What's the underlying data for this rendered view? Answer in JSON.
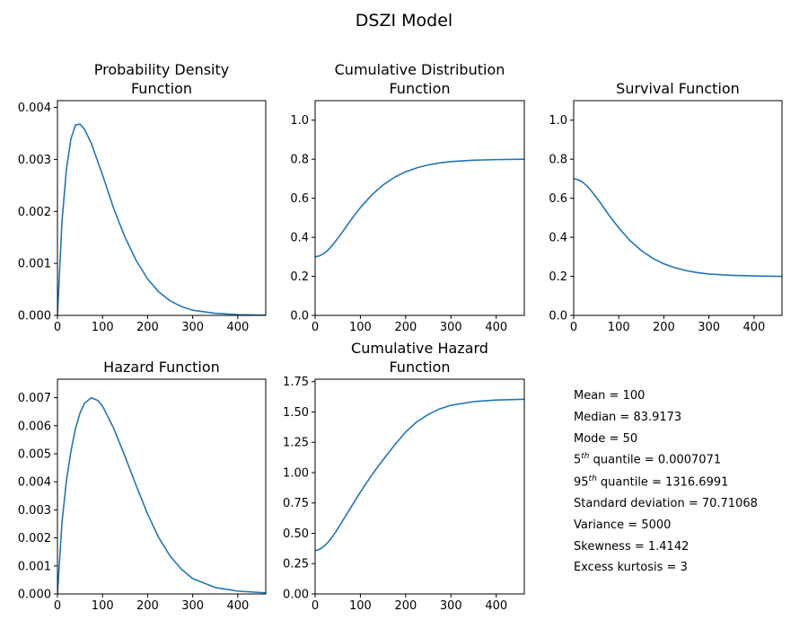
{
  "figure": {
    "title": "DSZI Model"
  },
  "colors": {
    "line": "#1f77b4",
    "axis": "#000000",
    "background": "#ffffff"
  },
  "chart_data": [
    {
      "id": "pdf",
      "type": "line",
      "title": "Probability Density\nFunction",
      "xlim": [
        0,
        462
      ],
      "ylim": [
        0,
        0.00413
      ],
      "xticks": [
        "0",
        "100",
        "200",
        "300",
        "400"
      ],
      "yticks": [
        "0.000",
        "0.001",
        "0.002",
        "0.003",
        "0.004"
      ],
      "series": [
        {
          "x": [
            0,
            10,
            20,
            30,
            40,
            50,
            60,
            75,
            100,
            125,
            150,
            175,
            200,
            225,
            250,
            275,
            300,
            350,
            400,
            462
          ],
          "y": [
            0,
            0.0018,
            0.00282,
            0.0034,
            0.00366,
            0.00368,
            0.00358,
            0.00331,
            0.0027,
            0.00205,
            0.0015,
            0.00105,
            0.0007,
            0.00045,
            0.00028,
            0.00017,
            0.0001,
            4e-05,
            1.5e-05,
            4e-06
          ]
        }
      ]
    },
    {
      "id": "cdf",
      "type": "line",
      "title": "Cumulative Distribution\nFunction",
      "xlim": [
        0,
        462
      ],
      "ylim": [
        0,
        1.1
      ],
      "xticks": [
        "0",
        "100",
        "200",
        "300",
        "400"
      ],
      "yticks": [
        "0.0",
        "0.2",
        "0.4",
        "0.6",
        "0.8",
        "1.0"
      ],
      "series": [
        {
          "x": [
            0,
            10,
            20,
            30,
            40,
            50,
            60,
            80,
            100,
            125,
            150,
            175,
            200,
            225,
            250,
            275,
            300,
            350,
            400,
            462
          ],
          "y": [
            0.3,
            0.305,
            0.318,
            0.338,
            0.365,
            0.395,
            0.426,
            0.492,
            0.552,
            0.617,
            0.668,
            0.707,
            0.736,
            0.756,
            0.771,
            0.781,
            0.788,
            0.795,
            0.798,
            0.8
          ]
        }
      ]
    },
    {
      "id": "sf",
      "type": "line",
      "title": "Survival Function",
      "xlim": [
        0,
        462
      ],
      "ylim": [
        0,
        1.1
      ],
      "xticks": [
        "0",
        "100",
        "200",
        "300",
        "400"
      ],
      "yticks": [
        "0.0",
        "0.2",
        "0.4",
        "0.6",
        "0.8",
        "1.0"
      ],
      "series": [
        {
          "x": [
            0,
            10,
            20,
            30,
            40,
            50,
            60,
            80,
            100,
            125,
            150,
            175,
            200,
            225,
            250,
            275,
            300,
            350,
            400,
            462
          ],
          "y": [
            0.7,
            0.695,
            0.682,
            0.662,
            0.635,
            0.605,
            0.574,
            0.508,
            0.448,
            0.383,
            0.332,
            0.293,
            0.264,
            0.244,
            0.229,
            0.219,
            0.212,
            0.205,
            0.202,
            0.2
          ]
        }
      ]
    },
    {
      "id": "hf",
      "type": "line",
      "title": "Hazard Function",
      "xlim": [
        0,
        462
      ],
      "ylim": [
        0,
        0.00766
      ],
      "xticks": [
        "0",
        "100",
        "200",
        "300",
        "400"
      ],
      "yticks": [
        "0.000",
        "0.001",
        "0.002",
        "0.003",
        "0.004",
        "0.005",
        "0.006",
        "0.007"
      ],
      "series": [
        {
          "x": [
            0,
            10,
            20,
            30,
            40,
            50,
            60,
            75,
            90,
            100,
            125,
            150,
            175,
            200,
            225,
            250,
            275,
            300,
            350,
            400,
            462
          ],
          "y": [
            0,
            0.00255,
            0.00405,
            0.0051,
            0.0059,
            0.00645,
            0.0068,
            0.007,
            0.0069,
            0.0067,
            0.0059,
            0.0049,
            0.00385,
            0.00285,
            0.002,
            0.00135,
            0.00088,
            0.00055,
            0.00023,
            0.0001,
            4e-05
          ]
        }
      ]
    },
    {
      "id": "chf",
      "type": "line",
      "title": "Cumulative Hazard\nFunction",
      "xlim": [
        0,
        462
      ],
      "ylim": [
        0,
        1.77
      ],
      "xticks": [
        "0",
        "100",
        "200",
        "300",
        "400"
      ],
      "yticks": [
        "0.00",
        "0.25",
        "0.50",
        "0.75",
        "1.00",
        "1.25",
        "1.50",
        "1.75"
      ],
      "series": [
        {
          "x": [
            0,
            10,
            20,
            30,
            40,
            50,
            60,
            80,
            100,
            125,
            150,
            175,
            200,
            225,
            250,
            275,
            300,
            350,
            400,
            462
          ],
          "y": [
            0.357,
            0.368,
            0.394,
            0.432,
            0.481,
            0.538,
            0.598,
            0.72,
            0.84,
            0.98,
            1.105,
            1.225,
            1.335,
            1.42,
            1.48,
            1.525,
            1.555,
            1.585,
            1.598,
            1.605
          ]
        }
      ]
    }
  ],
  "stats": [
    {
      "label": "Mean = 100"
    },
    {
      "label": "Median = 83.9173"
    },
    {
      "label": "Mode = 50"
    },
    {
      "pre": "5",
      "sup": "th",
      "post": " quantile = 0.0007071"
    },
    {
      "pre": "95",
      "sup": "th",
      "post": " quantile = 1316.6991"
    },
    {
      "label": "Standard deviation = 70.71068"
    },
    {
      "label": "Variance = 5000"
    },
    {
      "label": "Skewness = 1.4142"
    },
    {
      "label": "Excess kurtosis = 3"
    }
  ]
}
